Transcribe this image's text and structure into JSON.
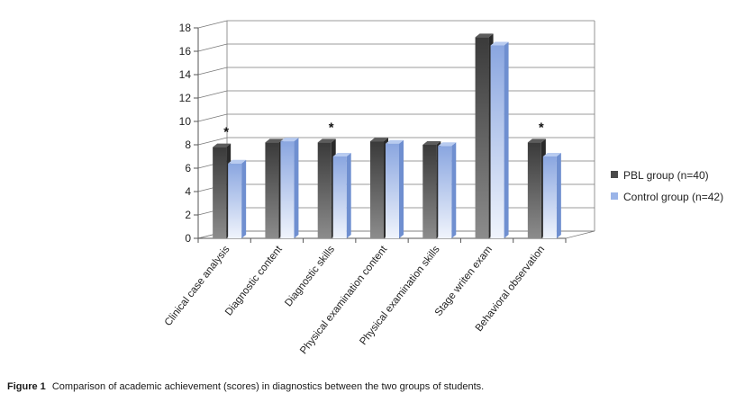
{
  "chart_data": {
    "type": "bar",
    "categories": [
      "Clinical case analysis",
      "Diagnostic content",
      "Diagnostic skills",
      "Physical examination content",
      "Physical examination skills",
      "Stage writen exam",
      "Behavioral observation"
    ],
    "series": [
      {
        "name": "PBL group (n=40)",
        "values": [
          7.8,
          8.2,
          8.2,
          8.3,
          8.0,
          17.2,
          8.2
        ],
        "color": "#4a4a4a"
      },
      {
        "name": "Control group (n=42)",
        "values": [
          6.4,
          8.3,
          7.0,
          8.1,
          7.9,
          16.5,
          7.0
        ],
        "color": "#9ab4e8"
      }
    ],
    "annotations": [
      {
        "category": "Clinical case analysis",
        "text": "*"
      },
      {
        "category": "Diagnostic skills",
        "text": "*"
      },
      {
        "category": "Behavioral observation",
        "text": "*"
      }
    ],
    "ylim": [
      0,
      18
    ],
    "yticks": [
      0,
      2,
      4,
      6,
      8,
      10,
      12,
      14,
      16,
      18
    ],
    "grid": true,
    "legend_position": "right",
    "style": "3d-clustered-column"
  },
  "caption": {
    "label": "Figure 1",
    "text": "Comparison of academic achievement (scores) in diagnostics between the two groups of students."
  }
}
